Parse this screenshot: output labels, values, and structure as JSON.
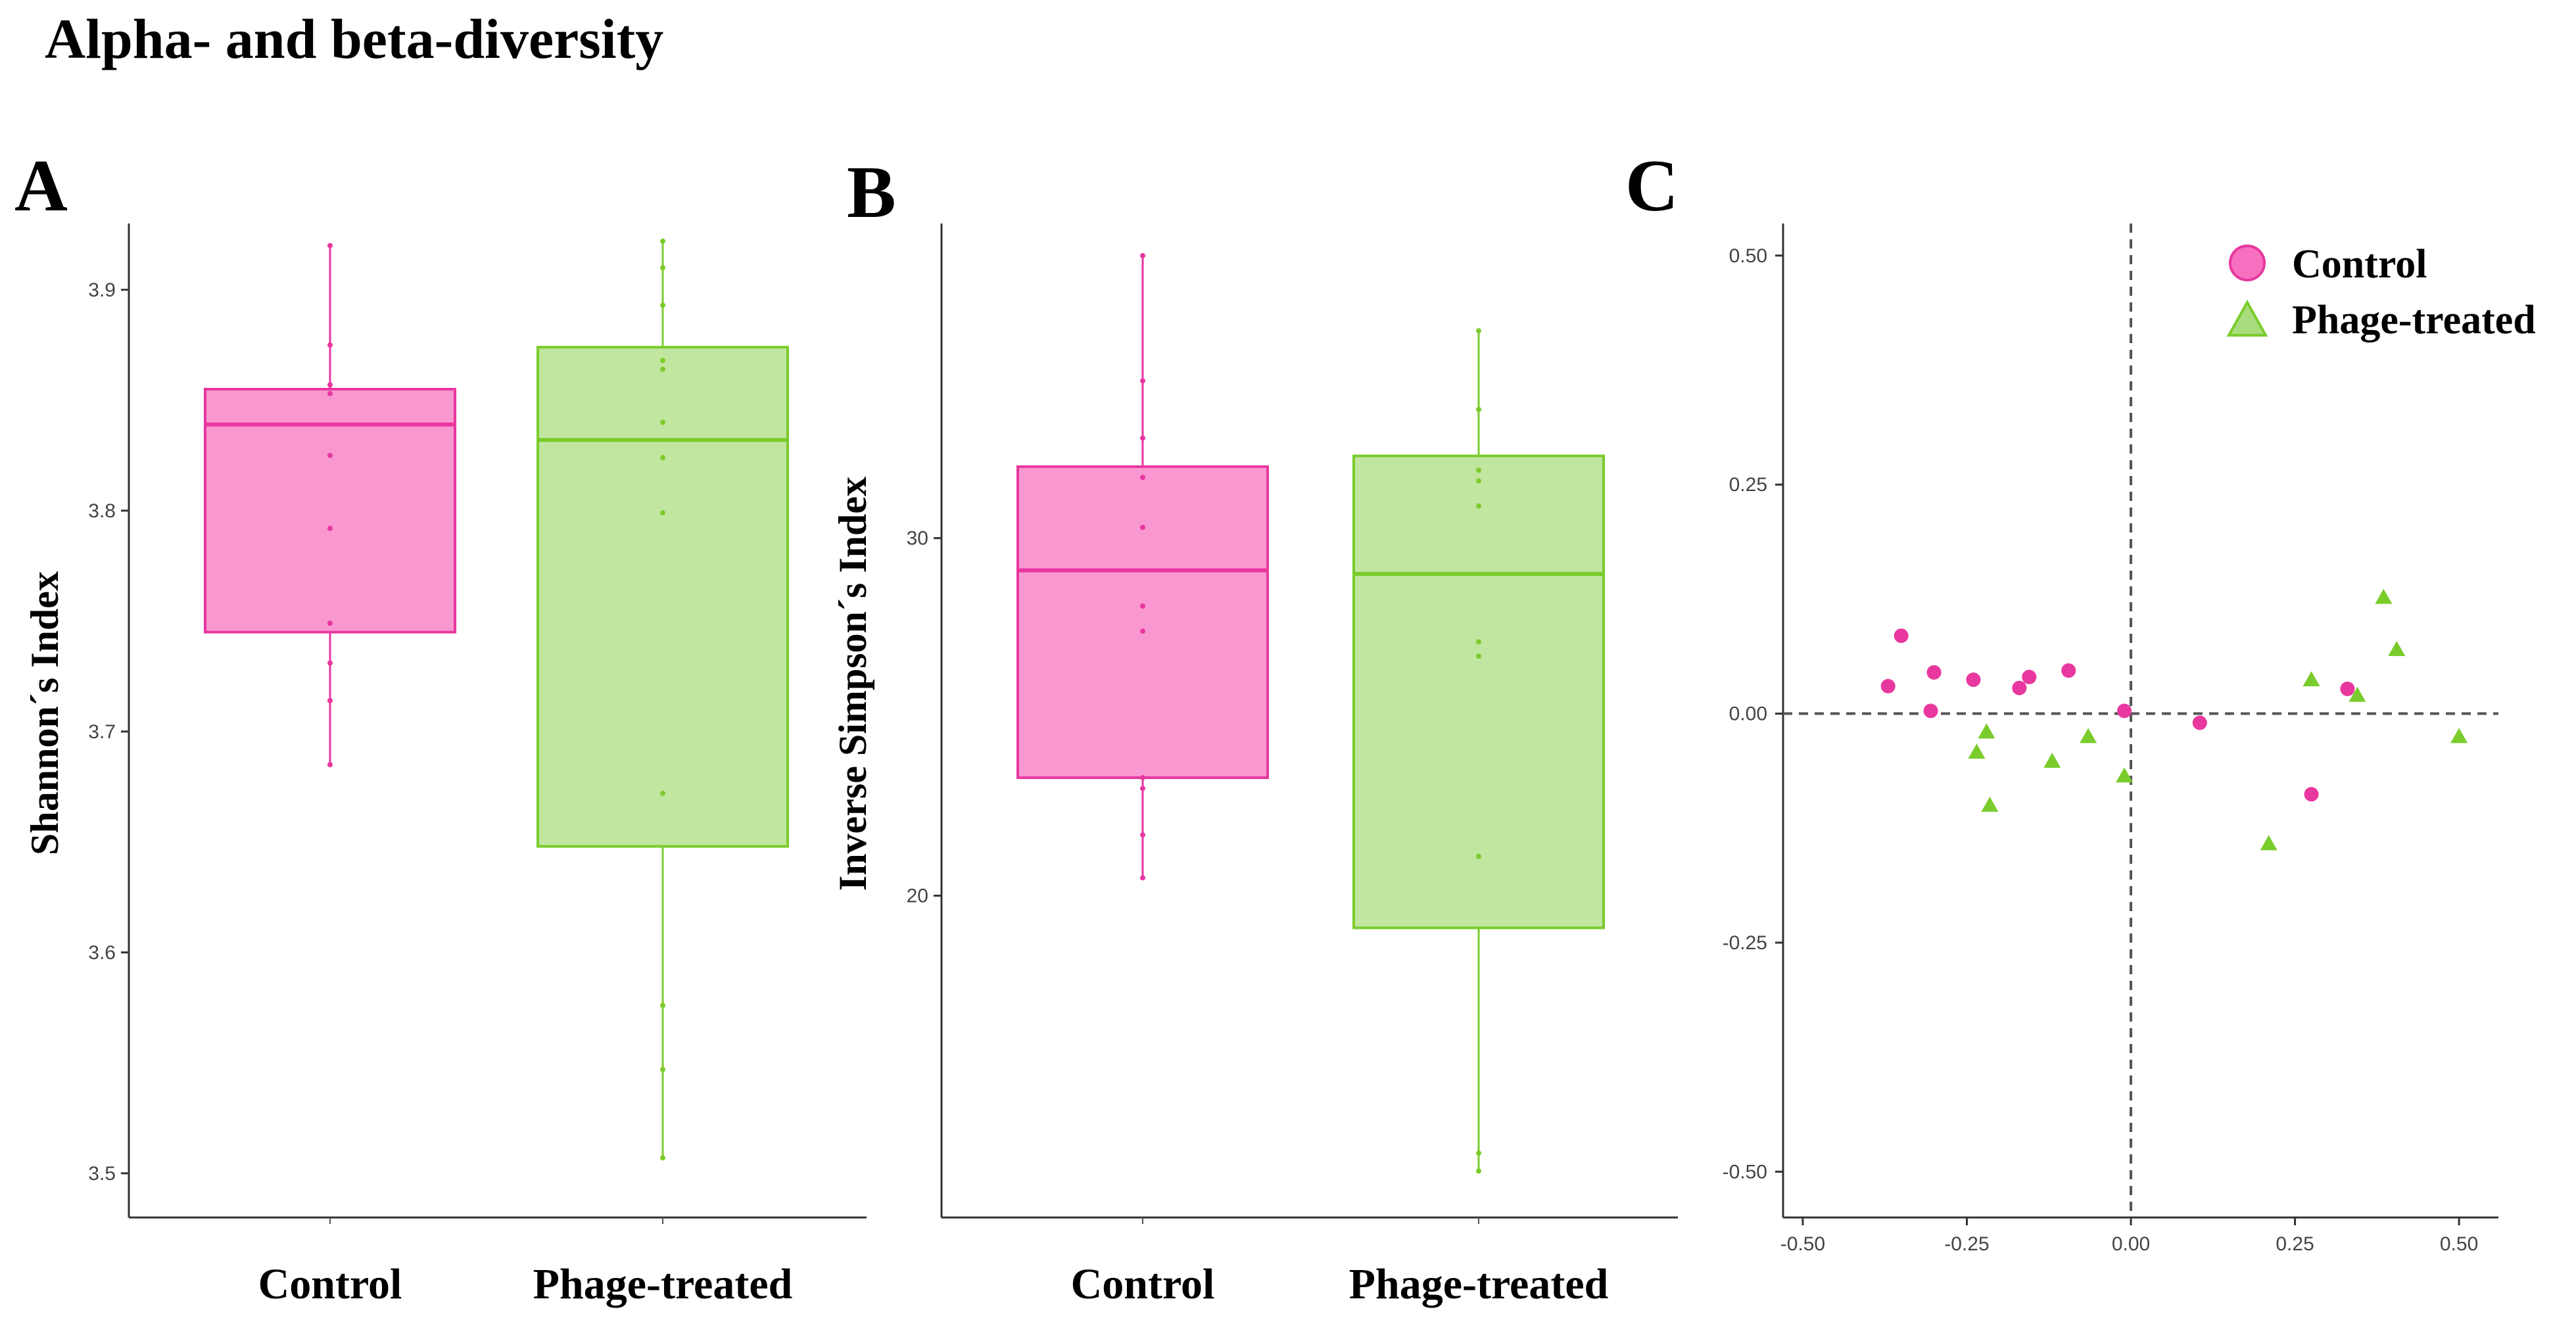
{
  "figure_title": "Alpha- and beta-diversity",
  "colors": {
    "control": "#f76fbf",
    "control_line": "#e8379f",
    "phage": "#a9dc7c",
    "phage_line": "#7acc2c",
    "axis": "#333333"
  },
  "chart_data": [
    {
      "panel": "A",
      "type": "box",
      "ylabel": "Shannon´s Index",
      "ylim": [
        3.48,
        3.93
      ],
      "yticks": [
        3.5,
        3.6,
        3.7,
        3.8,
        3.9
      ],
      "ytick_labels": [
        "3.5",
        "3.6",
        "3.7",
        "3.8",
        "3.9"
      ],
      "categories": [
        "Control",
        "Phage-treated"
      ],
      "groups": [
        {
          "category": "Control",
          "box": {
            "whisker_low": 3.685,
            "q1": 3.745,
            "median": 3.839,
            "q3": 3.855,
            "whisker_high": 3.92
          },
          "points": [
            3.92,
            3.875,
            3.857,
            3.853,
            3.825,
            3.792,
            3.749,
            3.731,
            3.714,
            3.685
          ]
        },
        {
          "category": "Phage-treated",
          "box": {
            "whisker_low": 3.507,
            "q1": 3.648,
            "median": 3.832,
            "q3": 3.874,
            "whisker_high": 3.922
          },
          "points": [
            3.922,
            3.91,
            3.893,
            3.868,
            3.864,
            3.84,
            3.824,
            3.799,
            3.672,
            3.576,
            3.547,
            3.507
          ]
        }
      ]
    },
    {
      "panel": "B",
      "type": "box",
      "ylabel": "Inverse Simpson´s Index",
      "ylim": [
        11.0,
        38.8
      ],
      "yticks": [
        20,
        30
      ],
      "ytick_labels": [
        "20",
        "30"
      ],
      "categories": [
        "Control",
        "Phage-treated"
      ],
      "groups": [
        {
          "category": "Control",
          "box": {
            "whisker_low": 20.5,
            "q1": 23.3,
            "median": 29.1,
            "q3": 32.0,
            "whisker_high": 37.9
          },
          "points": [
            37.9,
            34.4,
            32.8,
            31.7,
            30.3,
            28.1,
            27.4,
            23.3,
            23.0,
            21.7,
            20.5
          ]
        },
        {
          "category": "Phage-treated",
          "box": {
            "whisker_low": 12.3,
            "q1": 19.1,
            "median": 29.0,
            "q3": 32.3,
            "whisker_high": 35.8
          },
          "points": [
            35.8,
            33.6,
            31.9,
            31.6,
            30.9,
            27.1,
            26.7,
            21.1,
            12.8,
            12.3
          ]
        }
      ]
    },
    {
      "panel": "C",
      "type": "scatter",
      "xlim": [
        -0.53,
        0.56
      ],
      "ylim": [
        -0.55,
        0.535
      ],
      "xticks": [
        -0.5,
        -0.25,
        0.0,
        0.25,
        0.5
      ],
      "xtick_labels": [
        "-0.50",
        "-0.25",
        "0.00",
        "0.25",
        "0.50"
      ],
      "yticks": [
        -0.5,
        -0.25,
        0.0,
        0.25,
        0.5
      ],
      "ytick_labels": [
        "-0.50",
        "-0.25",
        "0.00",
        "0.25",
        "0.50"
      ],
      "reference_lines": {
        "x": 0,
        "y": 0
      },
      "legend_position": "top-right",
      "series": [
        {
          "name": "Control",
          "marker": "circle",
          "points": [
            [
              -0.37,
              0.03
            ],
            [
              -0.35,
              0.085
            ],
            [
              -0.3,
              0.045
            ],
            [
              -0.305,
              0.003
            ],
            [
              -0.24,
              0.037
            ],
            [
              -0.17,
              0.028
            ],
            [
              -0.155,
              0.04
            ],
            [
              -0.095,
              0.047
            ],
            [
              -0.01,
              0.003
            ],
            [
              0.105,
              -0.01
            ],
            [
              0.275,
              -0.088
            ],
            [
              0.33,
              0.027
            ]
          ]
        },
        {
          "name": "Phage-treated",
          "marker": "triangle",
          "points": [
            [
              -0.235,
              -0.042
            ],
            [
              -0.22,
              -0.02
            ],
            [
              -0.215,
              -0.1
            ],
            [
              -0.12,
              -0.052
            ],
            [
              -0.065,
              -0.025
            ],
            [
              -0.01,
              -0.068
            ],
            [
              0.21,
              -0.142
            ],
            [
              0.275,
              0.037
            ],
            [
              0.345,
              0.02
            ],
            [
              0.385,
              0.127
            ],
            [
              0.405,
              0.07
            ],
            [
              0.5,
              -0.025
            ]
          ]
        }
      ]
    }
  ]
}
